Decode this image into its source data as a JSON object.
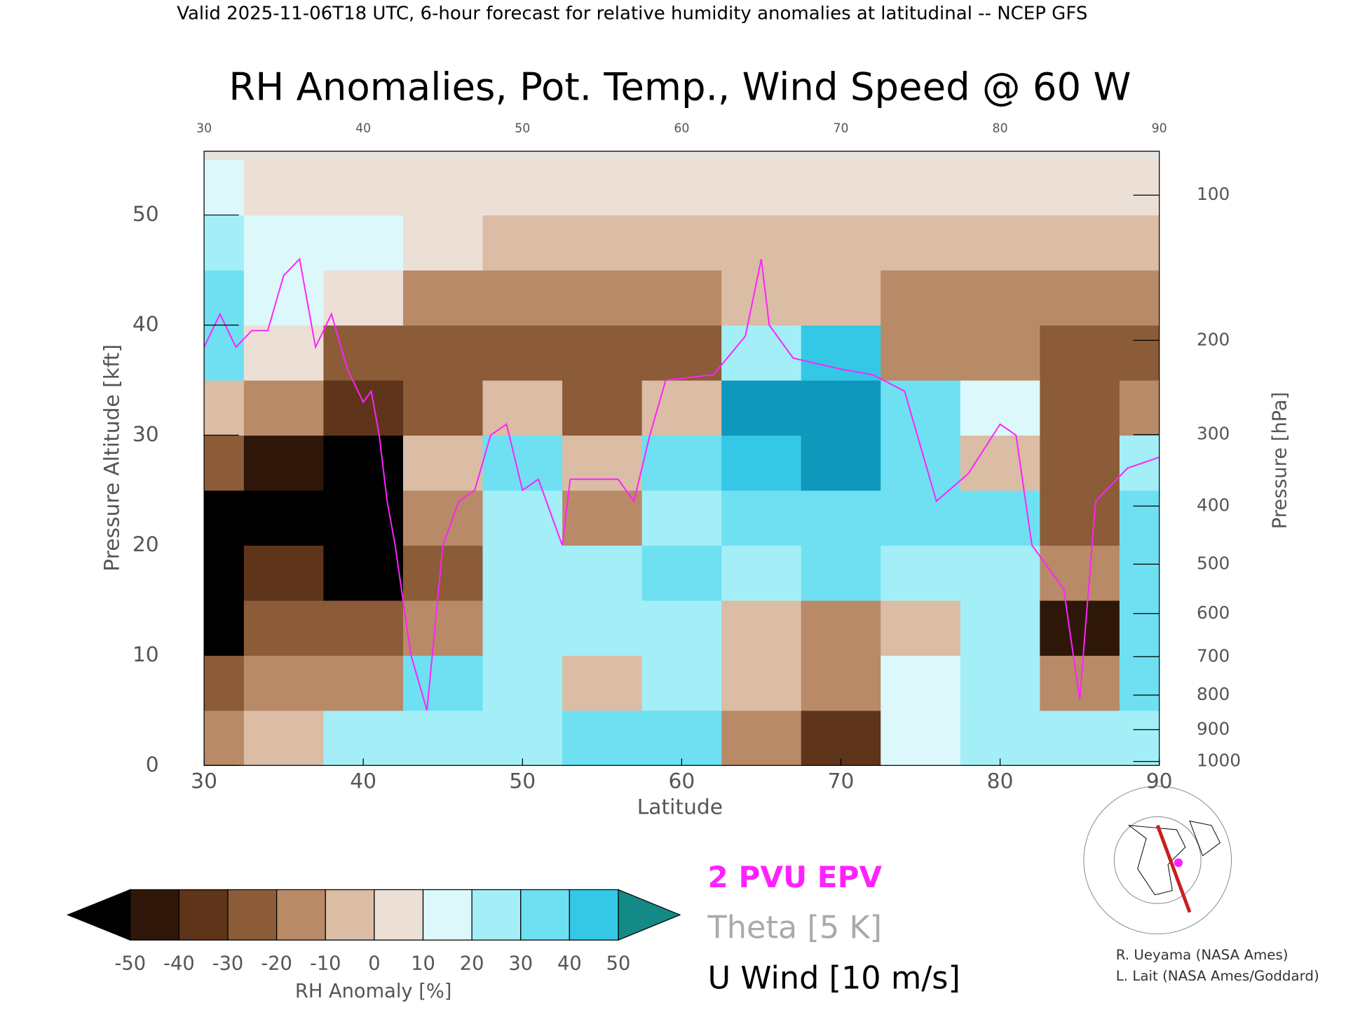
{
  "chart_data": {
    "type": "heatmap",
    "header": "Valid 2025-11-06T18 UTC, 6-hour forecast for relative humidity anomalies at latitudinal -- NCEP GFS",
    "title": "RH Anomalies, Pot. Temp., Wind Speed @ 60 W",
    "x_label": "Latitude",
    "y_label": "Pressure Altitude [kft]",
    "y2_label": "Pressure [hPa]",
    "xlim": [
      30,
      90
    ],
    "xticks": [
      30,
      40,
      50,
      60,
      70,
      80,
      90
    ],
    "ylim": [
      0,
      55.8
    ],
    "yticks": [
      0,
      10,
      20,
      30,
      40,
      50
    ],
    "y2scale": "pressure-altitude",
    "y2ticks": [
      100,
      200,
      300,
      400,
      500,
      600,
      700,
      800,
      900,
      1000
    ],
    "x": [
      30,
      35,
      40,
      45,
      50,
      55,
      60,
      65,
      70,
      75,
      80,
      85,
      90
    ],
    "y": [
      2.5,
      7.5,
      12.5,
      17.5,
      22.5,
      27.5,
      32.5,
      37.5,
      42.5,
      47.5,
      52.5
    ],
    "z": [
      [
        -20,
        -10,
        20,
        20,
        20,
        30,
        30,
        -20,
        -40,
        10,
        20,
        20,
        20
      ],
      [
        -30,
        -20,
        -20,
        30,
        20,
        -10,
        20,
        -10,
        -20,
        10,
        20,
        -20,
        30
      ],
      [
        -60,
        -30,
        -30,
        -20,
        20,
        20,
        20,
        -10,
        -20,
        -10,
        20,
        -50,
        30
      ],
      [
        -60,
        -40,
        -60,
        -30,
        20,
        20,
        30,
        20,
        30,
        20,
        20,
        -20,
        30
      ],
      [
        -60,
        -60,
        -60,
        -20,
        20,
        -20,
        20,
        30,
        30,
        30,
        30,
        -30,
        30
      ],
      [
        -30,
        -50,
        -60,
        -10,
        30,
        -10,
        30,
        40,
        50,
        30,
        -10,
        -30,
        20
      ],
      [
        -10,
        -20,
        -40,
        -30,
        -10,
        -30,
        -10,
        50,
        50,
        30,
        10,
        -30,
        -20
      ],
      [
        30,
        0,
        -30,
        -30,
        -30,
        -30,
        -30,
        20,
        40,
        -20,
        -20,
        -30,
        -30
      ],
      [
        30,
        10,
        0,
        -20,
        -20,
        -20,
        -20,
        -10,
        -10,
        -20,
        -20,
        -20,
        -20
      ],
      [
        20,
        10,
        10,
        0,
        -5,
        -5,
        -5,
        -5,
        -5,
        -5,
        -5,
        -5,
        -5
      ],
      [
        10,
        5,
        5,
        0,
        0,
        0,
        0,
        0,
        0,
        0,
        0,
        0,
        0
      ]
    ],
    "colorbar": {
      "label": "RH Anomaly [%]",
      "levels": [
        -50,
        -40,
        -30,
        -20,
        -10,
        0,
        10,
        20,
        30,
        40,
        50
      ],
      "colors": [
        "#000000",
        "#2e1709",
        "#5e341a",
        "#8c5b37",
        "#b88a67",
        "#dbbca4",
        "#ece0d6",
        "#dcf8fb",
        "#a4eef8",
        "#6ee0f2",
        "#34c8e6",
        "#0e98bc",
        "#138a86"
      ]
    },
    "series": [
      {
        "name": "2 PVU EPV",
        "color": "#ff22ff",
        "x": [
          30,
          31,
          32,
          33,
          34,
          35,
          36,
          37,
          38,
          39,
          40,
          40.5,
          41,
          41.5,
          42,
          43,
          44,
          45,
          46,
          47,
          48,
          49,
          50,
          51,
          52,
          52.5,
          53,
          56,
          57,
          58,
          59,
          62,
          64,
          65,
          65.5,
          67,
          70,
          72,
          74,
          76,
          78,
          80,
          81,
          82,
          83,
          84,
          85,
          86,
          88,
          90
        ],
        "y": [
          38,
          41,
          38,
          39.5,
          39.5,
          44.5,
          46,
          38,
          41,
          36,
          33,
          34,
          30,
          24,
          20,
          10,
          5,
          20,
          24,
          25,
          30,
          31,
          25,
          26,
          22,
          20,
          26,
          26,
          24,
          30,
          35,
          35.5,
          39,
          46,
          40,
          37,
          36,
          35.5,
          34,
          24,
          26.5,
          31,
          30,
          20,
          18,
          16,
          6,
          24,
          27,
          28
        ]
      }
    ],
    "legend_items": [
      {
        "name": "Theta [5 K]",
        "color": "#aaaaaa"
      },
      {
        "name": "U Wind [10 m/s]",
        "color": "#000000"
      }
    ],
    "credits": [
      "R. Ueyama (NASA Ames)",
      "L. Lait (NASA Ames/Goddard)"
    ]
  }
}
